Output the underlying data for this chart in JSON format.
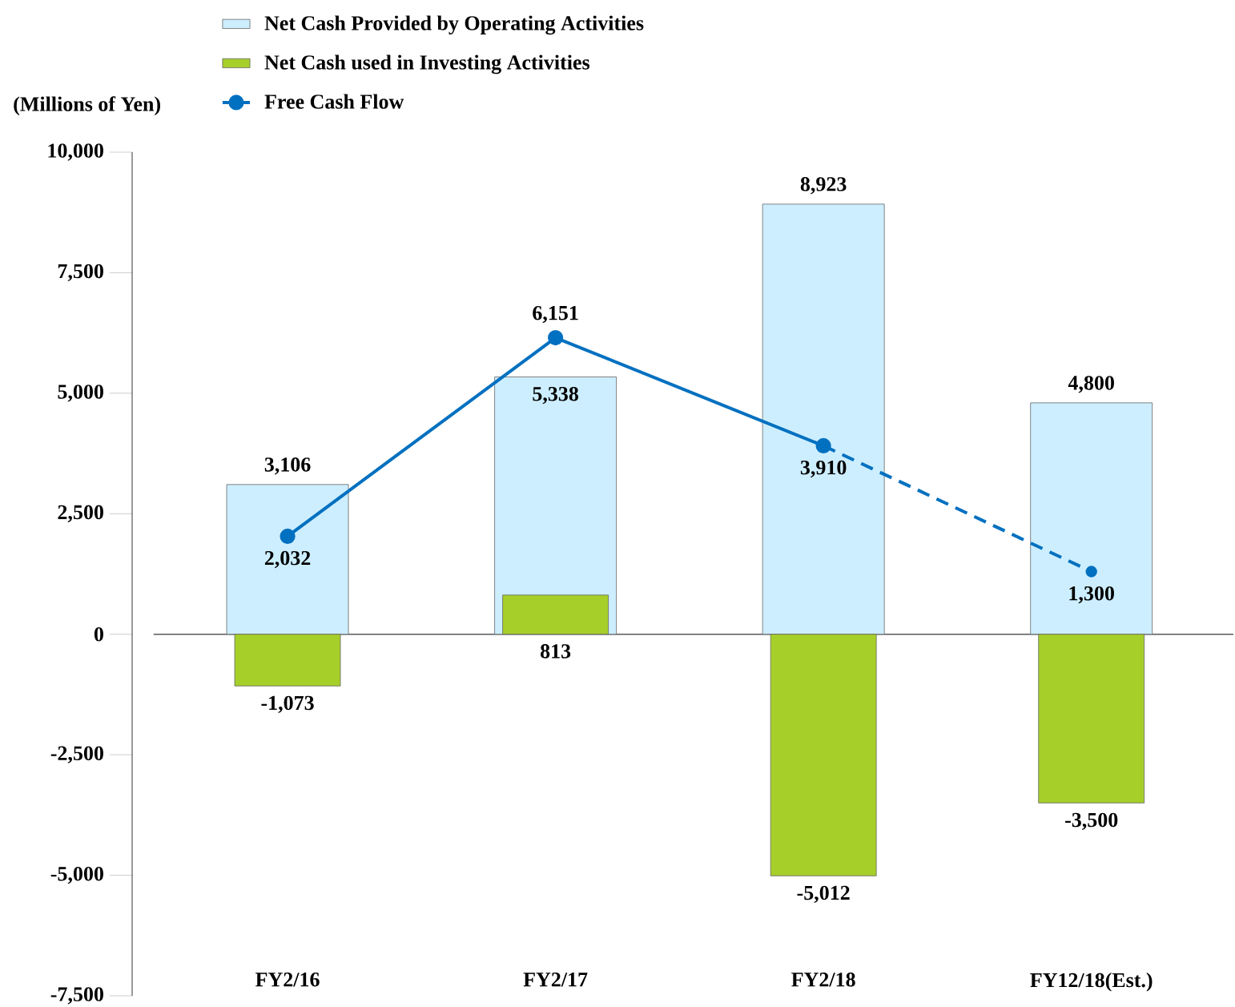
{
  "chart_data": {
    "type": "bar",
    "ylabel": "(Millions of Yen)",
    "categories": [
      "FY2/16",
      "FY2/17",
      "FY2/18",
      "FY12/18(Est.)"
    ],
    "ylim": [
      -7500,
      10000
    ],
    "yticks": [
      {
        "value": -7500,
        "label": "-7,500"
      },
      {
        "value": -5000,
        "label": "-5,000"
      },
      {
        "value": -2500,
        "label": "-2,500"
      },
      0,
      {
        "value": 2500,
        "label": "2,500"
      },
      {
        "value": 5000,
        "label": "5,000"
      },
      {
        "value": 7500,
        "label": "7,500"
      },
      {
        "value": 10000,
        "label": "10,000"
      }
    ],
    "legend": "top left",
    "marker": "circle",
    "series": [
      {
        "name": "Net Cash Provided by Operating Activities",
        "color": "#cdeeff",
        "values": [
          3106,
          5338,
          8923,
          4800
        ],
        "value_labels": [
          "3,106",
          "5,338",
          "8,923",
          "4,800"
        ]
      },
      {
        "name": "Net Cash used in Investing Activities",
        "color": "#a6cf2a",
        "values": [
          -1073,
          813,
          -5012,
          -3500
        ],
        "value_labels": [
          "-1,073",
          "813",
          "-5,012",
          "-3,500"
        ]
      },
      {
        "name": "Free Cash Flow",
        "type": "line",
        "color": "#0070c0",
        "line_style": "solid",
        "values": [
          2032,
          6151,
          3910,
          null
        ],
        "value_labels": [
          "2,032",
          "6,151",
          "3,910",
          null
        ]
      },
      {
        "type": "line",
        "color": "#0070c0",
        "line_style": "dashed",
        "values": [
          null,
          null,
          3910,
          1300
        ],
        "value_labels": [
          null,
          null,
          null,
          "1,300"
        ]
      }
    ]
  }
}
